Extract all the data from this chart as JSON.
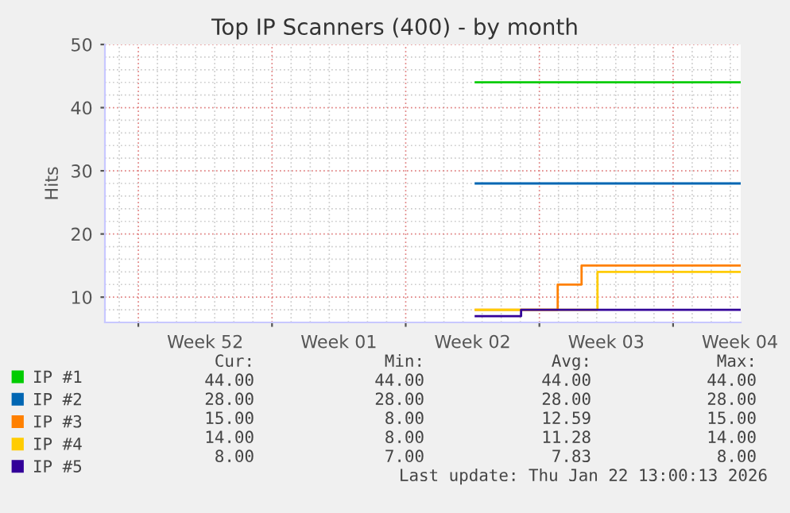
{
  "chart_data": {
    "type": "step",
    "title": "Top IP Scanners (400) - by month",
    "ylabel": "Hits",
    "xlim": [
      "2025-12-20T06:00",
      "2026-01-22T13:00"
    ],
    "xticks": [
      {
        "value": "2025-12-22",
        "label": null
      },
      {
        "value": "2025-12-29",
        "label": null
      },
      {
        "value": "2026-01-05",
        "label": null
      },
      {
        "value": "2026-01-12",
        "label": null
      },
      {
        "value": "2026-01-19",
        "label": null
      },
      {
        "value": "2025-12-25T12:00",
        "label": "Week 52"
      },
      {
        "value": "2026-01-01T12:00",
        "label": "Week 01"
      },
      {
        "value": "2026-01-08T12:00",
        "label": "Week 02"
      },
      {
        "value": "2026-01-15T12:00",
        "label": "Week 03"
      },
      {
        "value": "2026-01-22T12:00",
        "label": "Week 04"
      }
    ],
    "ylim": [
      6,
      50
    ],
    "yticks": [
      10,
      20,
      30,
      40,
      50
    ],
    "grid": true,
    "legend": "bottom left",
    "series": [
      {
        "name": "IP #1",
        "color": "#00cc00",
        "x": [
          "2026-01-08T16:00",
          "2026-01-22T13:00"
        ],
        "values": [
          44,
          44
        ]
      },
      {
        "name": "IP #2",
        "color": "#0066b3",
        "x": [
          "2026-01-08T16:00",
          "2026-01-22T13:00"
        ],
        "values": [
          28,
          28
        ]
      },
      {
        "name": "IP #3",
        "color": "#ff8000",
        "x": [
          "2026-01-08T16:00",
          "2026-01-12T23:00",
          "2026-01-14T05:00",
          "2026-01-22T13:00"
        ],
        "values": [
          8,
          12,
          15,
          15
        ]
      },
      {
        "name": "IP #4",
        "color": "#ffcc00",
        "x": [
          "2026-01-08T16:00",
          "2026-01-15T01:00",
          "2026-01-22T13:00"
        ],
        "values": [
          8,
          14,
          14
        ]
      },
      {
        "name": "IP #5",
        "color": "#330099",
        "x": [
          "2026-01-08T16:00",
          "2026-01-11T01:00",
          "2026-01-22T13:00"
        ],
        "values": [
          7,
          8,
          8
        ]
      }
    ],
    "annotations": [
      "Cur:",
      "Min:",
      "Avg:",
      "Max:",
      "44.00",
      "44.00",
      "44.00",
      "44.00",
      "28.00",
      "28.00",
      "28.00",
      "28.00",
      "15.00",
      "8.00",
      "12.59",
      "15.00",
      "14.00",
      "8.00",
      "11.28",
      "14.00",
      "8.00",
      "7.00",
      "7.83",
      "8.00",
      "Last update: Thu Jan 22 13:00:13 2026"
    ]
  }
}
